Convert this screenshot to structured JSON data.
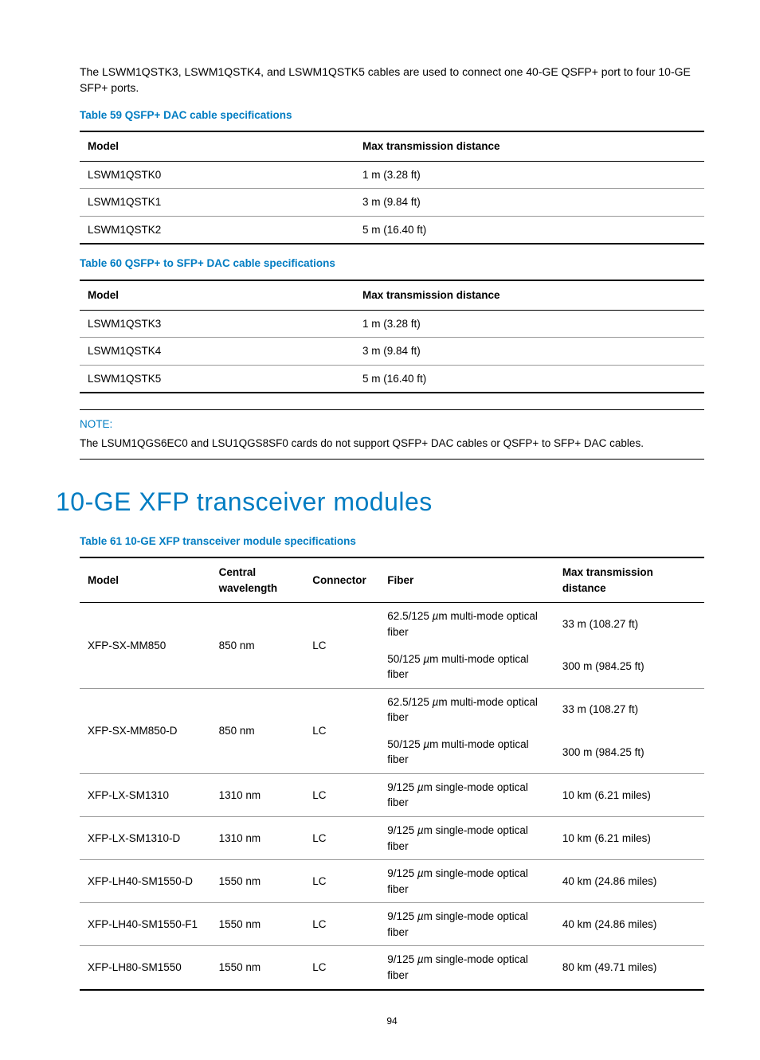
{
  "intro": "The LSWM1QSTK3, LSWM1QSTK4, and LSWM1QSTK5 cables are used to connect one 40-GE QSFP+ port to four 10-GE SFP+ ports.",
  "table59": {
    "caption": "Table 59 QSFP+ DAC cable specifications",
    "headers": [
      "Model",
      "Max transmission distance"
    ],
    "rows": [
      [
        "LSWM1QSTK0",
        "1 m (3.28 ft)"
      ],
      [
        "LSWM1QSTK1",
        "3 m (9.84 ft)"
      ],
      [
        "LSWM1QSTK2",
        "5 m (16.40 ft)"
      ]
    ]
  },
  "table60": {
    "caption": "Table 60 QSFP+ to SFP+ DAC cable specifications",
    "headers": [
      "Model",
      "Max transmission distance"
    ],
    "rows": [
      [
        "LSWM1QSTK3",
        "1 m (3.28 ft)"
      ],
      [
        "LSWM1QSTK4",
        "3 m (9.84 ft)"
      ],
      [
        "LSWM1QSTK5",
        "5 m (16.40 ft)"
      ]
    ]
  },
  "note": {
    "label": "NOTE:",
    "text": "The LSUM1QGS6EC0 and LSU1QGS8SF0 cards do not support QSFP+ DAC cables or QSFP+ to SFP+ DAC cables."
  },
  "heading": "10-GE XFP transceiver modules",
  "table61": {
    "caption": "Table 61 10-GE XFP transceiver module specifications",
    "headers": [
      "Model",
      "Central wavelength",
      "Connector",
      "Fiber",
      "Max transmission distance"
    ],
    "rows": [
      {
        "model": "XFP-SX-MM850",
        "wavelength": "850 nm",
        "connector": "LC",
        "fibers": [
          {
            "fiber": "62.5/125 µm multi-mode optical fiber",
            "dist": "33 m (108.27 ft)"
          },
          {
            "fiber": "50/125 µm multi-mode optical fiber",
            "dist": "300 m (984.25 ft)"
          }
        ]
      },
      {
        "model": "XFP-SX-MM850-D",
        "wavelength": "850 nm",
        "connector": "LC",
        "fibers": [
          {
            "fiber": "62.5/125 µm multi-mode optical fiber",
            "dist": "33 m (108.27 ft)"
          },
          {
            "fiber": "50/125 µm multi-mode optical fiber",
            "dist": "300 m (984.25 ft)"
          }
        ]
      },
      {
        "model": "XFP-LX-SM1310",
        "wavelength": "1310 nm",
        "connector": "LC",
        "fibers": [
          {
            "fiber": "9/125 µm single-mode optical fiber",
            "dist": "10 km (6.21 miles)"
          }
        ]
      },
      {
        "model": "XFP-LX-SM1310-D",
        "wavelength": "1310 nm",
        "connector": "LC",
        "fibers": [
          {
            "fiber": "9/125 µm single-mode optical fiber",
            "dist": "10 km (6.21 miles)"
          }
        ]
      },
      {
        "model": "XFP-LH40-SM1550-D",
        "wavelength": "1550 nm",
        "connector": "LC",
        "fibers": [
          {
            "fiber": "9/125 µm single-mode optical fiber",
            "dist": "40 km (24.86 miles)"
          }
        ]
      },
      {
        "model": "XFP-LH40-SM1550-F1",
        "wavelength": "1550 nm",
        "connector": "LC",
        "fibers": [
          {
            "fiber": "9/125 µm single-mode optical fiber",
            "dist": "40 km (24.86 miles)"
          }
        ]
      },
      {
        "model": "XFP-LH80-SM1550",
        "wavelength": "1550 nm",
        "connector": "LC",
        "fibers": [
          {
            "fiber": "9/125 µm single-mode optical fiber",
            "dist": "80 km (49.71 miles)"
          }
        ]
      }
    ]
  },
  "pageNumber": "94"
}
